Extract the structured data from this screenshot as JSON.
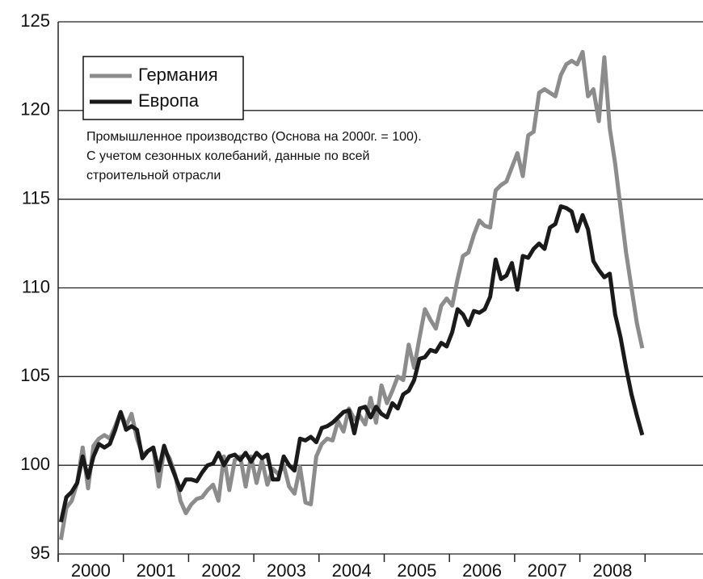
{
  "chart_data": {
    "type": "line",
    "annotation": [
      "Промышленное производство (Основа на 2000г. = 100).",
      "С учетом сезонных колебаний, данные по всей",
      "строительной отрасли"
    ],
    "categories": [
      null,
      null,
      null,
      null,
      null,
      null,
      "2000",
      null,
      null,
      null,
      null,
      null,
      null,
      null,
      null,
      null,
      null,
      null,
      "2001",
      null,
      null,
      null,
      null,
      null,
      null,
      null,
      null,
      null,
      null,
      null,
      "2002",
      null,
      null,
      null,
      null,
      null,
      null,
      null,
      null,
      null,
      null,
      null,
      "2003",
      null,
      null,
      null,
      null,
      null,
      null,
      null,
      null,
      null,
      null,
      null,
      "2004",
      null,
      null,
      null,
      null,
      null,
      null,
      null,
      null,
      null,
      null,
      null,
      "2005",
      null,
      null,
      null,
      null,
      null,
      null,
      null,
      null,
      null,
      null,
      null,
      "2006",
      null,
      null,
      null,
      null,
      null,
      null,
      null,
      null,
      null,
      null,
      null,
      "2007",
      null,
      null,
      null,
      null,
      null,
      null,
      null,
      null,
      null,
      null,
      null,
      "2008",
      null,
      null,
      null,
      null,
      null
    ],
    "series": [
      {
        "name": "Германия",
        "color": "#8c8c8c",
        "values": [
          95.8,
          97.6,
          98.0,
          99.0,
          101.0,
          98.7,
          101.1,
          101.5,
          101.7,
          101.5,
          102.2,
          103.0,
          102.2,
          102.9,
          101.5,
          100.6,
          100.8,
          101.0,
          98.8,
          100.9,
          100.4,
          99.5,
          98.0,
          97.3,
          97.8,
          98.1,
          98.2,
          98.6,
          98.9,
          98.0,
          100.5,
          98.6,
          100.3,
          100.5,
          98.8,
          100.5,
          99.0,
          100.3,
          98.9,
          99.8,
          99.5,
          100.0,
          98.8,
          98.4,
          99.9,
          97.9,
          97.8,
          100.5,
          101.2,
          101.5,
          101.4,
          102.5,
          101.9,
          103.2,
          102.6,
          102.8,
          102.3,
          103.8,
          102.4,
          104.5,
          103.5,
          104.2,
          105.0,
          104.8,
          106.8,
          105.5,
          107.2,
          108.8,
          108.2,
          107.7,
          109.0,
          109.4,
          109.0,
          110.5,
          111.8,
          112.0,
          113.0,
          113.8,
          113.5,
          113.4,
          115.5,
          115.8,
          116.0,
          116.8,
          117.6,
          116.3,
          118.6,
          118.8,
          121.0,
          121.2,
          121.0,
          120.8,
          122.0,
          122.6,
          122.8,
          122.6,
          123.3,
          120.8,
          121.2,
          119.4,
          123.0,
          119.0,
          117.0,
          114.5,
          112.0,
          110.0,
          108.0,
          106.6
        ]
      },
      {
        "name": "Европа",
        "color": "#1a1a1a",
        "values": [
          96.8,
          98.2,
          98.5,
          99.0,
          100.5,
          99.3,
          100.5,
          101.2,
          101.0,
          101.2,
          102.0,
          103.0,
          102.0,
          102.2,
          102.0,
          100.4,
          100.8,
          101.0,
          99.7,
          101.1,
          100.2,
          99.4,
          98.6,
          99.2,
          99.2,
          99.1,
          99.6,
          100.0,
          100.1,
          100.7,
          100.0,
          100.5,
          100.6,
          100.3,
          100.7,
          100.2,
          100.7,
          100.4,
          100.6,
          99.2,
          99.2,
          100.5,
          100.0,
          99.7,
          101.5,
          101.4,
          101.6,
          101.3,
          102.1,
          102.2,
          102.4,
          102.7,
          103.0,
          103.1,
          101.8,
          103.2,
          103.3,
          102.7,
          103.3,
          102.9,
          102.7,
          103.5,
          103.2,
          104.0,
          104.2,
          104.8,
          106.0,
          106.1,
          106.5,
          106.4,
          106.9,
          106.7,
          107.5,
          108.8,
          108.5,
          107.9,
          108.7,
          108.6,
          108.8,
          109.5,
          111.6,
          110.5,
          110.7,
          111.4,
          109.9,
          111.8,
          111.7,
          112.2,
          112.5,
          112.2,
          113.4,
          113.6,
          114.6,
          114.5,
          114.3,
          113.2,
          114.1,
          113.3,
          111.5,
          111.0,
          110.6,
          110.8,
          108.5,
          107.2,
          105.5,
          104.0,
          102.8,
          101.7
        ]
      }
    ],
    "ylim": [
      95,
      125
    ],
    "yticks": [
      95,
      100,
      105,
      110,
      115,
      120,
      125
    ],
    "grid": true,
    "legend": "upper left"
  }
}
